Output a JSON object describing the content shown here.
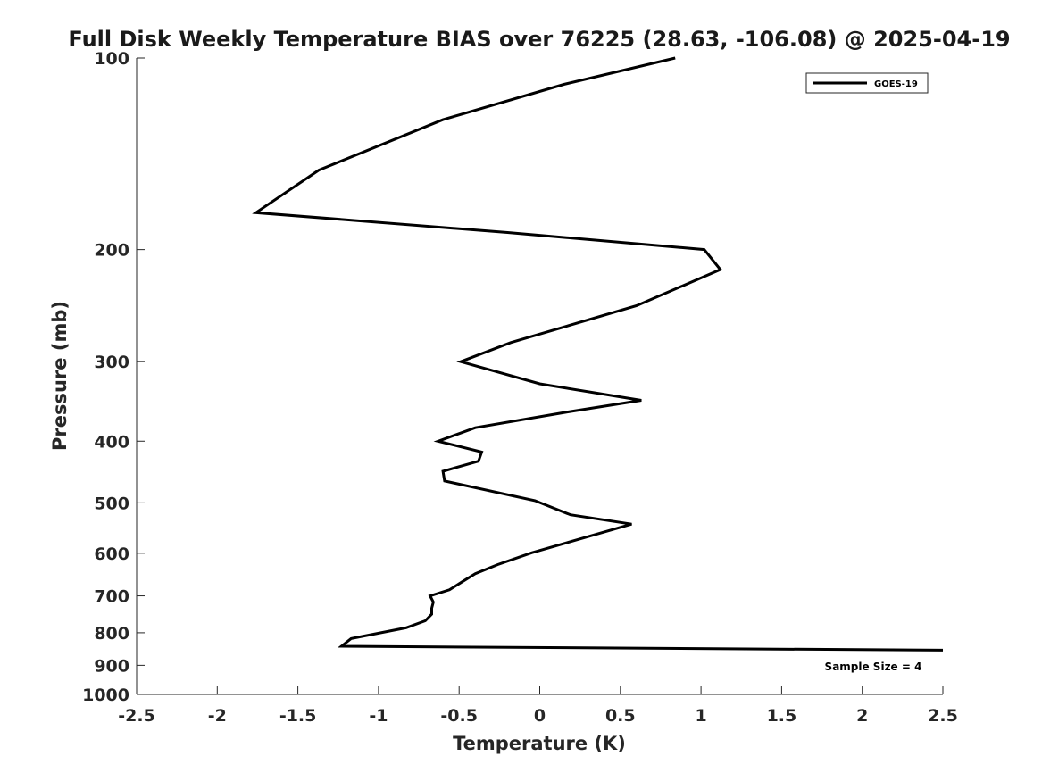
{
  "chart_data": {
    "type": "line",
    "title": "Full Disk Weekly Temperature BIAS over 76225 (28.63, -106.08) @ 2025-04-19",
    "xlabel": "Temperature (K)",
    "ylabel": "Pressure (mb)",
    "xlim": [
      -2.5,
      2.5
    ],
    "ylim": [
      1000,
      100
    ],
    "y_scale": "log",
    "x_ticks": [
      "-2.5",
      "-2",
      "-1.5",
      "-1",
      "-0.5",
      "0",
      "0.5",
      "1",
      "1.5",
      "2",
      "2.5"
    ],
    "y_ticks": [
      "100",
      "200",
      "300",
      "400",
      "500",
      "600",
      "700",
      "800",
      "900",
      "1000"
    ],
    "grid": false,
    "legend_position": "top-right",
    "series": [
      {
        "name": "GOES-19",
        "color": "#000000",
        "points": [
          {
            "x": 0.84,
            "p": 100
          },
          {
            "x": 0.15,
            "p": 110
          },
          {
            "x": -0.6,
            "p": 125
          },
          {
            "x": -1.37,
            "p": 150
          },
          {
            "x": -1.76,
            "p": 175
          },
          {
            "x": -0.2,
            "p": 188
          },
          {
            "x": 1.02,
            "p": 200
          },
          {
            "x": 1.12,
            "p": 215
          },
          {
            "x": 0.6,
            "p": 245
          },
          {
            "x": -0.18,
            "p": 280
          },
          {
            "x": -0.49,
            "p": 300
          },
          {
            "x": 0.0,
            "p": 325
          },
          {
            "x": 0.63,
            "p": 345
          },
          {
            "x": 0.17,
            "p": 360
          },
          {
            "x": -0.4,
            "p": 381
          },
          {
            "x": -0.63,
            "p": 400
          },
          {
            "x": -0.36,
            "p": 416
          },
          {
            "x": -0.38,
            "p": 430
          },
          {
            "x": -0.6,
            "p": 446
          },
          {
            "x": -0.59,
            "p": 462
          },
          {
            "x": -0.03,
            "p": 496
          },
          {
            "x": 0.19,
            "p": 522
          },
          {
            "x": 0.57,
            "p": 540
          },
          {
            "x": -0.05,
            "p": 599
          },
          {
            "x": -0.26,
            "p": 625
          },
          {
            "x": -0.4,
            "p": 646
          },
          {
            "x": -0.48,
            "p": 665
          },
          {
            "x": -0.56,
            "p": 685
          },
          {
            "x": -0.68,
            "p": 700
          },
          {
            "x": -0.66,
            "p": 716
          },
          {
            "x": -0.67,
            "p": 732
          },
          {
            "x": -0.67,
            "p": 748
          },
          {
            "x": -0.71,
            "p": 766
          },
          {
            "x": -0.83,
            "p": 786
          },
          {
            "x": -1.17,
            "p": 817
          },
          {
            "x": -1.23,
            "p": 840
          },
          {
            "x": 2.5,
            "p": 852
          }
        ]
      }
    ],
    "annotation": "Sample Size = 4"
  }
}
